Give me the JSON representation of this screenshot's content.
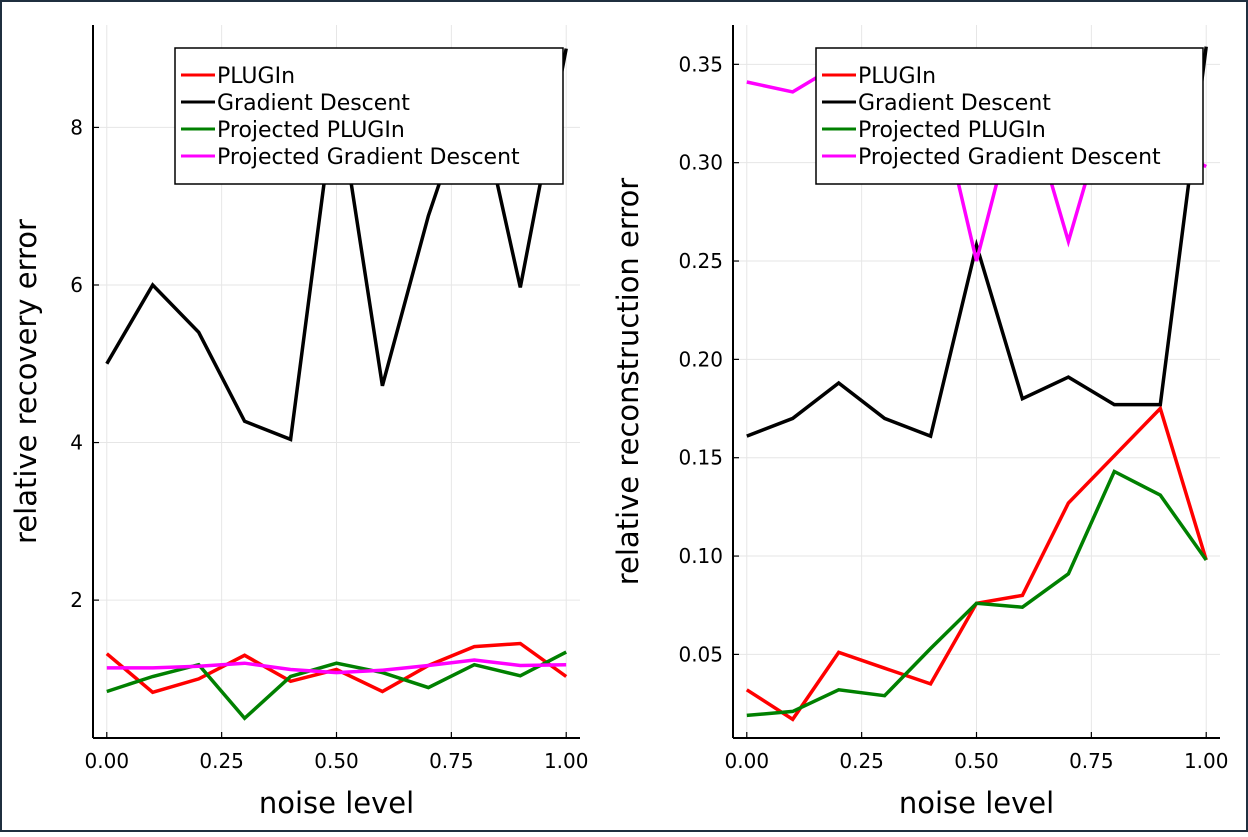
{
  "chart_data": [
    {
      "type": "line",
      "title": "",
      "xlabel": "noise level",
      "ylabel": "relative recovery error",
      "xlim": [
        -0.03,
        1.03
      ],
      "ylim": [
        0.25,
        9.3
      ],
      "xticks": [
        0.0,
        0.25,
        0.5,
        0.75,
        1.0
      ],
      "xtick_labels": [
        "0.00",
        "0.25",
        "0.50",
        "0.75",
        "1.00"
      ],
      "yticks": [
        2,
        4,
        6,
        8
      ],
      "ytick_labels": [
        "2",
        "4",
        "6",
        "8"
      ],
      "grid": true,
      "legend_position": "top-right",
      "x": [
        0.0,
        0.1,
        0.2,
        0.3,
        0.4,
        0.5,
        0.6,
        0.7,
        0.8,
        0.9,
        1.0
      ],
      "series": [
        {
          "name": "PLUGIn",
          "color": "#ff0000",
          "values": [
            1.32,
            0.83,
            1.0,
            1.3,
            0.97,
            1.12,
            0.84,
            1.17,
            1.41,
            1.45,
            1.03
          ]
        },
        {
          "name": "Gradient Descent",
          "color": "#000000",
          "values": [
            5.0,
            6.0,
            5.4,
            4.27,
            4.04,
            8.5,
            4.72,
            6.88,
            8.6,
            5.97,
            9.0
          ]
        },
        {
          "name": "Projected PLUGIn",
          "color": "#008000",
          "values": [
            0.84,
            1.03,
            1.18,
            0.5,
            1.03,
            1.2,
            1.08,
            0.89,
            1.18,
            1.04,
            1.34
          ]
        },
        {
          "name": "Projected Gradient Descent",
          "color": "#ff00ff",
          "values": [
            1.14,
            1.14,
            1.16,
            1.2,
            1.12,
            1.08,
            1.11,
            1.17,
            1.24,
            1.17,
            1.18
          ]
        }
      ]
    },
    {
      "type": "line",
      "title": "",
      "xlabel": "noise level",
      "ylabel": "relative reconstruction error",
      "xlim": [
        -0.03,
        1.03
      ],
      "ylim": [
        0.0075,
        0.37
      ],
      "xticks": [
        0.0,
        0.25,
        0.5,
        0.75,
        1.0
      ],
      "xtick_labels": [
        "0.00",
        "0.25",
        "0.50",
        "0.75",
        "1.00"
      ],
      "yticks": [
        0.05,
        0.1,
        0.15,
        0.2,
        0.25,
        0.3,
        0.35
      ],
      "ytick_labels": [
        "0.05",
        "0.10",
        "0.15",
        "0.20",
        "0.25",
        "0.30",
        "0.35"
      ],
      "grid": true,
      "legend_position": "top-right",
      "x": [
        0.0,
        0.1,
        0.2,
        0.3,
        0.4,
        0.5,
        0.6,
        0.7,
        0.8,
        0.9,
        1.0
      ],
      "series": [
        {
          "name": "PLUGIn",
          "color": "#ff0000",
          "values": [
            0.032,
            0.017,
            0.051,
            0.043,
            0.035,
            0.076,
            0.08,
            0.127,
            0.151,
            0.175,
            0.098
          ]
        },
        {
          "name": "Gradient Descent",
          "color": "#000000",
          "values": [
            0.161,
            0.17,
            0.188,
            0.17,
            0.161,
            0.258,
            0.18,
            0.191,
            0.177,
            0.177,
            0.359
          ]
        },
        {
          "name": "Projected PLUGIn",
          "color": "#008000",
          "values": [
            0.019,
            0.021,
            0.032,
            0.029,
            0.053,
            0.076,
            0.074,
            0.091,
            0.143,
            0.131,
            0.098
          ]
        },
        {
          "name": "Projected Gradient Descent",
          "color": "#ff00ff",
          "values": [
            0.341,
            0.336,
            0.35,
            0.352,
            0.35,
            0.25,
            0.34,
            0.26,
            0.34,
            0.31,
            0.298
          ]
        }
      ]
    }
  ]
}
